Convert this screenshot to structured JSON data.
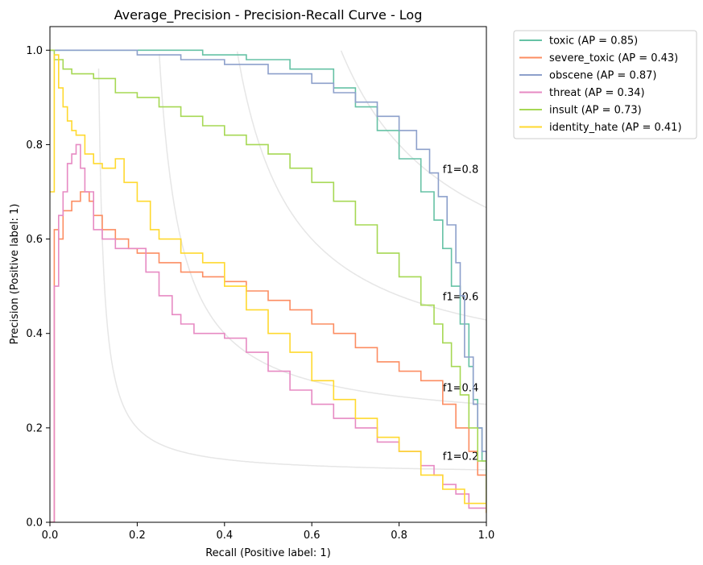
{
  "chart_data": {
    "type": "line",
    "title": "Average_Precision - Precision-Recall Curve - Log",
    "xlabel": "Recall (Positive label: 1)",
    "ylabel": "Precision (Positive label: 1)",
    "xlim": [
      0,
      1
    ],
    "ylim": [
      0,
      1.05
    ],
    "x_ticks": [
      "0.0",
      "0.2",
      "0.4",
      "0.6",
      "0.8",
      "1.0"
    ],
    "y_ticks": [
      "0.0",
      "0.2",
      "0.4",
      "0.6",
      "0.8",
      "1.0"
    ],
    "grid": false,
    "legend_position": "outside-top-right",
    "iso_f1": [
      {
        "f": 0.2,
        "label": "f1=0.2"
      },
      {
        "f": 0.4,
        "label": "f1=0.4"
      },
      {
        "f": 0.6,
        "label": "f1=0.6"
      },
      {
        "f": 0.8,
        "label": "f1=0.8"
      }
    ],
    "iso_color": "#e6e6e6",
    "series": [
      {
        "name": "toxic (AP = 0.85)",
        "color": "#66c2a5",
        "x": [
          0.0,
          0.05,
          0.15,
          0.25,
          0.35,
          0.45,
          0.55,
          0.65,
          0.7,
          0.75,
          0.8,
          0.85,
          0.88,
          0.9,
          0.92,
          0.94,
          0.96,
          0.97,
          0.98,
          0.99,
          1.0
        ],
        "y": [
          1.0,
          1.0,
          1.0,
          1.0,
          0.99,
          0.98,
          0.96,
          0.92,
          0.88,
          0.83,
          0.77,
          0.7,
          0.64,
          0.58,
          0.5,
          0.42,
          0.33,
          0.26,
          0.2,
          0.13,
          0.07
        ]
      },
      {
        "name": "severe_toxic (AP = 0.43)",
        "color": "#fc8d62",
        "x": [
          0.0,
          0.01,
          0.02,
          0.03,
          0.05,
          0.07,
          0.09,
          0.1,
          0.12,
          0.15,
          0.18,
          0.2,
          0.25,
          0.3,
          0.35,
          0.4,
          0.45,
          0.5,
          0.55,
          0.6,
          0.65,
          0.7,
          0.75,
          0.8,
          0.85,
          0.9,
          0.93,
          0.96,
          0.98,
          1.0
        ],
        "y": [
          0.0,
          0.62,
          0.6,
          0.66,
          0.68,
          0.7,
          0.68,
          0.65,
          0.62,
          0.6,
          0.58,
          0.57,
          0.55,
          0.53,
          0.52,
          0.51,
          0.49,
          0.47,
          0.45,
          0.42,
          0.4,
          0.37,
          0.34,
          0.32,
          0.3,
          0.25,
          0.2,
          0.15,
          0.1,
          0.02
        ]
      },
      {
        "name": "obscene (AP = 0.87)",
        "color": "#8da0cb",
        "x": [
          0.0,
          0.1,
          0.2,
          0.3,
          0.4,
          0.5,
          0.6,
          0.65,
          0.7,
          0.75,
          0.8,
          0.84,
          0.87,
          0.89,
          0.91,
          0.93,
          0.94,
          0.95,
          0.97,
          0.98,
          0.99,
          1.0
        ],
        "y": [
          1.0,
          1.0,
          0.99,
          0.98,
          0.97,
          0.95,
          0.93,
          0.91,
          0.89,
          0.86,
          0.83,
          0.79,
          0.74,
          0.69,
          0.63,
          0.55,
          0.48,
          0.35,
          0.25,
          0.2,
          0.15,
          0.1
        ]
      },
      {
        "name": "threat (AP = 0.34)",
        "color": "#e78ac3",
        "x": [
          0.0,
          0.01,
          0.02,
          0.03,
          0.04,
          0.05,
          0.06,
          0.07,
          0.08,
          0.1,
          0.12,
          0.15,
          0.2,
          0.22,
          0.25,
          0.28,
          0.3,
          0.33,
          0.35,
          0.4,
          0.45,
          0.5,
          0.55,
          0.6,
          0.65,
          0.7,
          0.75,
          0.8,
          0.85,
          0.88,
          0.9,
          0.93,
          0.96,
          1.0
        ],
        "y": [
          0.0,
          0.5,
          0.65,
          0.7,
          0.76,
          0.78,
          0.8,
          0.75,
          0.7,
          0.62,
          0.6,
          0.58,
          0.58,
          0.53,
          0.48,
          0.44,
          0.42,
          0.4,
          0.4,
          0.39,
          0.36,
          0.32,
          0.28,
          0.25,
          0.22,
          0.2,
          0.17,
          0.15,
          0.12,
          0.1,
          0.08,
          0.06,
          0.03,
          0.02
        ]
      },
      {
        "name": "insult (AP = 0.73)",
        "color": "#a6d854",
        "x": [
          0.0,
          0.01,
          0.03,
          0.05,
          0.1,
          0.15,
          0.2,
          0.25,
          0.3,
          0.35,
          0.4,
          0.45,
          0.5,
          0.55,
          0.6,
          0.65,
          0.7,
          0.75,
          0.8,
          0.85,
          0.88,
          0.9,
          0.92,
          0.94,
          0.96,
          0.98,
          1.0
        ],
        "y": [
          1.0,
          0.98,
          0.96,
          0.95,
          0.94,
          0.91,
          0.9,
          0.88,
          0.86,
          0.84,
          0.82,
          0.8,
          0.78,
          0.75,
          0.72,
          0.68,
          0.63,
          0.57,
          0.52,
          0.46,
          0.42,
          0.38,
          0.33,
          0.27,
          0.2,
          0.13,
          0.04
        ]
      },
      {
        "name": "identity_hate (AP = 0.41)",
        "color": "#ffd92f",
        "x": [
          0.0,
          0.01,
          0.02,
          0.03,
          0.04,
          0.05,
          0.06,
          0.08,
          0.1,
          0.12,
          0.15,
          0.17,
          0.2,
          0.23,
          0.25,
          0.3,
          0.35,
          0.4,
          0.45,
          0.5,
          0.55,
          0.6,
          0.65,
          0.7,
          0.75,
          0.8,
          0.85,
          0.9,
          0.95,
          1.0
        ],
        "y": [
          0.7,
          0.99,
          0.92,
          0.88,
          0.85,
          0.83,
          0.82,
          0.78,
          0.76,
          0.75,
          0.77,
          0.72,
          0.68,
          0.62,
          0.6,
          0.57,
          0.55,
          0.5,
          0.45,
          0.4,
          0.36,
          0.3,
          0.26,
          0.22,
          0.18,
          0.15,
          0.1,
          0.07,
          0.04,
          0.02
        ]
      }
    ]
  }
}
